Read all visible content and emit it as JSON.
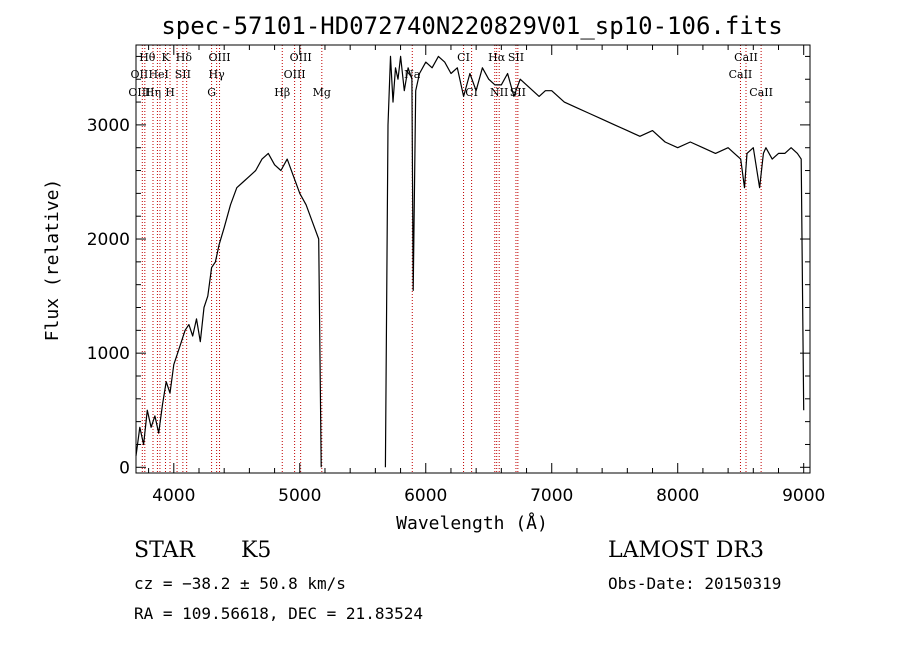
{
  "chart_data": {
    "type": "line",
    "title": "spec-57101-HD072740N220829V01_sp10-106.fits",
    "xlabel": "Wavelength (Å)",
    "ylabel": "Flux (relative)",
    "xlim": [
      3700,
      9050
    ],
    "ylim": [
      -50,
      3700
    ],
    "x_ticks": [
      4000,
      5000,
      6000,
      7000,
      8000,
      9000
    ],
    "x_tick_labels": [
      "4000",
      "5000",
      "6000",
      "7000",
      "8000",
      "9000"
    ],
    "y_ticks": [
      0,
      1000,
      2000,
      3000
    ],
    "y_tick_labels": [
      "0",
      "1000",
      "2000",
      "3000"
    ],
    "grid": false,
    "series": [
      {
        "line_color": "#000000",
        "segments": [
          {
            "x": [
              3700,
              3730,
              3760,
              3790,
              3820,
              3850,
              3880,
              3910,
              3940,
              3970,
              4000,
              4030,
              4060,
              4090,
              4120,
              4150,
              4180,
              4210,
              4240,
              4270,
              4300,
              4330,
              4360,
              4400,
              4450,
              4500,
              4550,
              4600,
              4650,
              4700,
              4750,
              4800,
              4850,
              4900,
              4950,
              5000,
              5050,
              5100,
              5150,
              5170
            ],
            "y": [
              100,
              350,
              200,
              500,
              350,
              450,
              300,
              550,
              750,
              650,
              900,
              1000,
              1100,
              1200,
              1250,
              1150,
              1300,
              1100,
              1400,
              1500,
              1750,
              1800,
              1950,
              2100,
              2300,
              2450,
              2500,
              2550,
              2600,
              2700,
              2750,
              2650,
              2600,
              2700,
              2550,
              2400,
              2300,
              2150,
              2000,
              0
            ]
          },
          {
            "x": [
              5680,
              5700,
              5720,
              5740,
              5760,
              5780,
              5800,
              5830,
              5860,
              5890,
              5900,
              5920,
              5950,
              6000,
              6050,
              6100,
              6150,
              6200,
              6250,
              6300,
              6350,
              6400,
              6450,
              6500,
              6550,
              6600,
              6650,
              6700,
              6750,
              6800,
              6850,
              6900,
              6950,
              7000,
              7100,
              7200,
              7300,
              7400,
              7500,
              7600,
              7700,
              7800,
              7900,
              8000,
              8100,
              8200,
              8300,
              8400,
              8450,
              8500,
              8530,
              8550,
              8600,
              8650,
              8680,
              8700,
              8750,
              8800,
              8850,
              8900,
              8950,
              8980,
              9000
            ],
            "y": [
              0,
              3000,
              3600,
              3200,
              3500,
              3400,
              3600,
              3300,
              3500,
              3400,
              1550,
              3300,
              3450,
              3550,
              3500,
              3600,
              3550,
              3450,
              3500,
              3250,
              3450,
              3300,
              3500,
              3400,
              3350,
              3350,
              3450,
              3250,
              3400,
              3350,
              3300,
              3250,
              3300,
              3300,
              3200,
              3150,
              3100,
              3050,
              3000,
              2950,
              2900,
              2950,
              2850,
              2800,
              2850,
              2800,
              2750,
              2800,
              2750,
              2700,
              2450,
              2750,
              2800,
              2450,
              2750,
              2800,
              2700,
              2750,
              2750,
              2800,
              2750,
              2700,
              500
            ]
          }
        ]
      }
    ],
    "line_markers": {
      "color": "#c00000",
      "x": [
        3750,
        3770,
        3835,
        3870,
        3890,
        3934,
        3970,
        4026,
        4072,
        4102,
        4300,
        4340,
        4363,
        4861,
        4959,
        5007,
        5175,
        5893,
        6300,
        6364,
        6548,
        6563,
        6583,
        6716,
        6731,
        8498,
        8542,
        8662
      ],
      "labels": [
        {
          "text": "Hθ",
          "x": 3790,
          "row": 0
        },
        {
          "text": "K",
          "x": 3935,
          "row": 0
        },
        {
          "text": "Hδ",
          "x": 4080,
          "row": 0
        },
        {
          "text": "OIII",
          "x": 4363,
          "row": 0
        },
        {
          "text": "OIII",
          "x": 5007,
          "row": 0
        },
        {
          "text": "CI",
          "x": 6300,
          "row": 0
        },
        {
          "text": "Hα",
          "x": 6563,
          "row": 0
        },
        {
          "text": "SII",
          "x": 6716,
          "row": 0
        },
        {
          "text": "CaII",
          "x": 8542,
          "row": 0
        },
        {
          "text": "OII",
          "x": 3727,
          "row": 1
        },
        {
          "text": "HeI",
          "x": 3880,
          "row": 1
        },
        {
          "text": "SII",
          "x": 4072,
          "row": 1
        },
        {
          "text": "Hγ",
          "x": 4340,
          "row": 1
        },
        {
          "text": "OIII",
          "x": 4959,
          "row": 1
        },
        {
          "text": "Na",
          "x": 5893,
          "row": 1
        },
        {
          "text": "CaII",
          "x": 8498,
          "row": 1
        },
        {
          "text": "OIII",
          "x": 3727,
          "row": 2
        },
        {
          "text": "Hη",
          "x": 3835,
          "row": 2
        },
        {
          "text": "H",
          "x": 3970,
          "row": 2
        },
        {
          "text": "G",
          "x": 4300,
          "row": 2
        },
        {
          "text": "Hβ",
          "x": 4861,
          "row": 2
        },
        {
          "text": "Mg",
          "x": 5175,
          "row": 2
        },
        {
          "text": "CI",
          "x": 6364,
          "row": 2
        },
        {
          "text": "NII",
          "x": 6583,
          "row": 2
        },
        {
          "text": "SII",
          "x": 6731,
          "row": 2
        },
        {
          "text": "CaII",
          "x": 8662,
          "row": 2
        }
      ]
    }
  },
  "info": {
    "object_type": "STAR",
    "subclass": "K5",
    "survey": "LAMOST DR3",
    "cz": "cz = −38.2 ± 50.8 km/s",
    "obs_date": "Obs-Date: 20150319",
    "coords": "RA = 109.56618, DEC =  21.83524"
  }
}
